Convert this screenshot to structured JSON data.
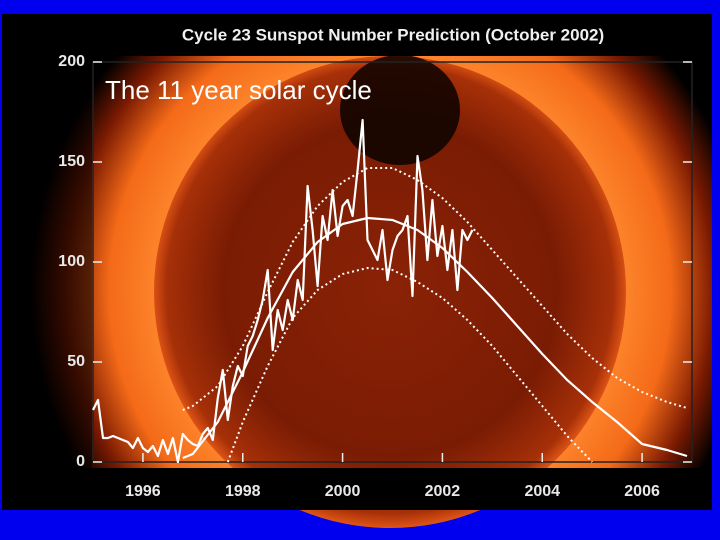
{
  "chart_data": {
    "type": "line",
    "title": "Cycle 23 Sunspot Number Prediction (October 2002)",
    "annotation": "The 11 year solar cycle",
    "xlim": [
      1995,
      2007
    ],
    "xticks": [
      1996,
      1998,
      2000,
      2002,
      2004,
      2006
    ],
    "ylim": [
      0,
      200
    ],
    "yticks": [
      0,
      50,
      100,
      150,
      200
    ],
    "series": [
      {
        "color": "#ffffff",
        "style": "solid",
        "x": [
          1995.0,
          1995.1,
          1995.2,
          1995.3,
          1995.4,
          1995.5,
          1995.6,
          1995.7,
          1995.8,
          1995.9,
          1996.0,
          1996.1,
          1996.2,
          1996.3,
          1996.4,
          1996.5,
          1996.6,
          1996.7,
          1996.8,
          1996.9,
          1997.0,
          1997.1,
          1997.2,
          1997.3,
          1997.4,
          1997.5,
          1997.6,
          1997.7,
          1997.8,
          1997.9,
          1998.0,
          1998.1,
          1998.2,
          1998.3,
          1998.4,
          1998.5,
          1998.6,
          1998.7,
          1998.8,
          1998.9,
          1999.0,
          1999.1,
          1999.2,
          1999.3,
          1999.4,
          1999.5,
          1999.6,
          1999.7,
          1999.8,
          1999.9,
          2000.0,
          2000.1,
          2000.2,
          2000.3,
          2000.4,
          2000.5,
          2000.6,
          2000.7,
          2000.8,
          2000.9,
          2001.0,
          2001.1,
          2001.2,
          2001.3,
          2001.4,
          2001.5,
          2001.6,
          2001.7,
          2001.8,
          2001.9,
          2002.0,
          2002.1,
          2002.2,
          2002.3,
          2002.4,
          2002.5,
          2002.6
        ],
        "values": [
          26,
          31,
          12,
          12,
          13,
          12,
          11,
          10,
          7,
          12,
          7,
          5,
          8,
          3,
          11,
          4,
          12,
          0,
          14,
          11,
          9,
          8,
          14,
          17,
          11,
          32,
          46,
          21,
          38,
          48,
          43,
          58,
          63,
          71,
          81,
          96,
          56,
          76,
          66,
          81,
          71,
          91,
          81,
          138,
          116,
          88,
          123,
          111,
          136,
          113,
          128,
          131,
          123,
          146,
          171,
          111,
          106,
          101,
          116,
          91,
          106,
          113,
          116,
          123,
          83,
          153,
          136,
          101,
          131,
          103,
          118,
          96,
          116,
          86,
          116,
          111,
          116
        ]
      },
      {
        "color": "#ffffff",
        "style": "solid",
        "x": [
          1996.8,
          1997.0,
          1997.5,
          1998.0,
          1998.5,
          1999.0,
          1999.5,
          2000.0,
          2000.5,
          2001.0,
          2001.5,
          2002.0,
          2002.5,
          2003.0,
          2003.5,
          2004.0,
          2004.5,
          2005.0,
          2005.5,
          2006.0,
          2006.5,
          2006.9
        ],
        "values": [
          2,
          4,
          20,
          45,
          72,
          95,
          110,
          119,
          122,
          121,
          116,
          107,
          95,
          82,
          68,
          54,
          41,
          30,
          20,
          9,
          6,
          3
        ]
      },
      {
        "color": "#ffffff",
        "style": "dotted",
        "x": [
          1996.8,
          1997.0,
          1997.5,
          1998.0,
          1998.5,
          1999.0,
          1999.5,
          2000.0,
          2000.5,
          2001.0,
          2001.5,
          2002.0,
          2002.5,
          2003.0,
          2003.5,
          2004.0,
          2004.5,
          2005.0,
          2005.5,
          2006.0,
          2006.5,
          2006.9
        ],
        "values": [
          26,
          28,
          38,
          58,
          85,
          110,
          128,
          140,
          147,
          147,
          141,
          132,
          120,
          106,
          92,
          78,
          64,
          52,
          42,
          35,
          30,
          27
        ]
      },
      {
        "color": "#ffffff",
        "style": "dotted",
        "x": [
          1997.7,
          1998.0,
          1998.5,
          1999.0,
          1999.5,
          2000.0,
          2000.5,
          2001.0,
          2001.5,
          2002.0,
          2002.5,
          2003.0,
          2003.5,
          2004.0,
          2004.5,
          2005.0
        ],
        "values": [
          0,
          20,
          48,
          72,
          86,
          94,
          97,
          96,
          90,
          82,
          71,
          58,
          43,
          28,
          13,
          0
        ]
      }
    ]
  }
}
